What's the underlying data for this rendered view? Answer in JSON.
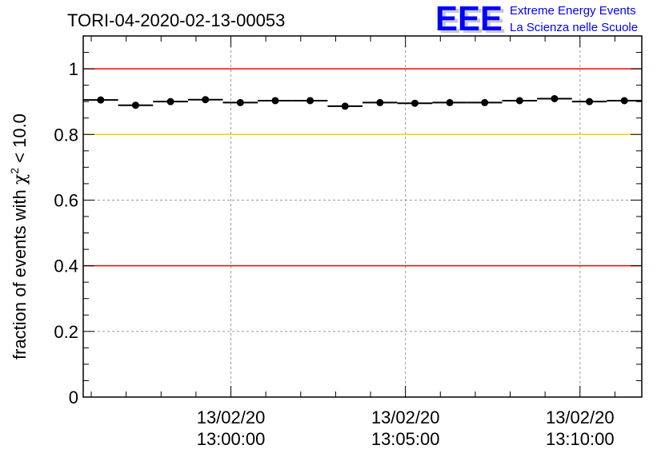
{
  "chart_data": {
    "type": "scatter",
    "title": "TORI-04-2020-02-13-00053",
    "xlabel": "",
    "ylabel": "fraction of events with χ² < 10.0",
    "ylabel_parts": {
      "pre": "fraction of events with ",
      "chi": "χ",
      "sup": "2",
      "post": " < 10.0"
    },
    "ylim": [
      0,
      1.1
    ],
    "yticks": [
      0,
      0.2,
      0.4,
      0.6,
      0.8,
      1
    ],
    "ytick_labels": [
      "0",
      "0.2",
      "0.4",
      "0.6",
      "0.8",
      "1"
    ],
    "x_unit": "minutes relative to 13:00:00",
    "xlim": [
      -4.23,
      11.77
    ],
    "xticks_major": [
      0,
      5,
      10
    ],
    "xtick_labels": [
      {
        "date": "13/02/20",
        "time": "13:00:00"
      },
      {
        "date": "13/02/20",
        "time": "13:05:00"
      },
      {
        "date": "13/02/20",
        "time": "13:10:00"
      }
    ],
    "bin_width_minutes": 1,
    "x": [
      -3.73,
      -2.73,
      -1.73,
      -0.73,
      0.27,
      1.27,
      2.27,
      3.27,
      4.27,
      5.27,
      6.27,
      7.27,
      8.27,
      9.27,
      10.27,
      11.27
    ],
    "values": [
      0.905,
      0.889,
      0.9,
      0.906,
      0.897,
      0.903,
      0.903,
      0.886,
      0.897,
      0.895,
      0.897,
      0.897,
      0.903,
      0.909,
      0.9,
      0.903
    ],
    "reference_lines": [
      {
        "y": 1.0,
        "color": "#ff0000"
      },
      {
        "y": 0.8,
        "color": "#ffcc00"
      },
      {
        "y": 0.4,
        "color": "#ff0000"
      }
    ],
    "grid": true
  },
  "logo": {
    "letters": "EEE",
    "line1": "Extreme Energy Events",
    "line2": "La Scienza nelle Scuole",
    "color": "#0000ff"
  }
}
